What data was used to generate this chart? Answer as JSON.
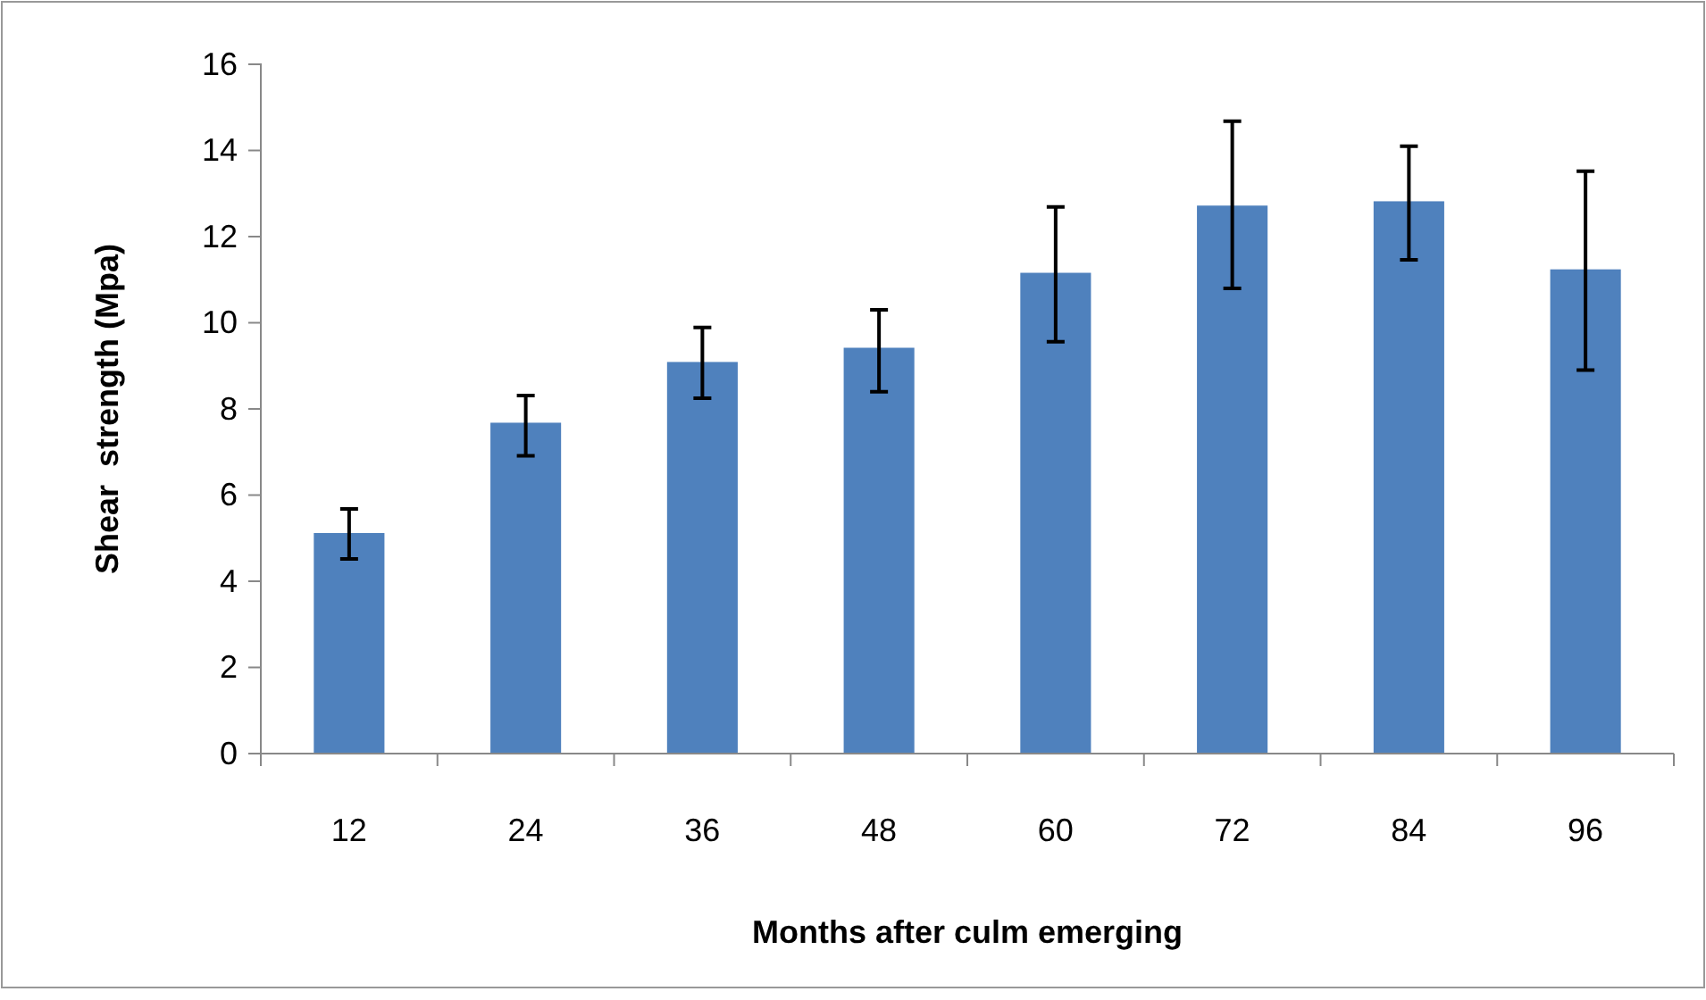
{
  "chart_data": {
    "type": "bar",
    "xlabel": "Months after culm emerging",
    "ylabel": "Shear  strength (Mpa)",
    "categories": [
      "12",
      "24",
      "36",
      "48",
      "60",
      "72",
      "84",
      "96"
    ],
    "values": [
      5.12,
      7.68,
      9.09,
      9.42,
      11.16,
      12.72,
      12.82,
      11.24
    ],
    "errors": [
      [
        4.52,
        5.68
      ],
      [
        6.91,
        8.31
      ],
      [
        8.25,
        9.89
      ],
      [
        8.4,
        10.3
      ],
      [
        9.56,
        12.69
      ],
      [
        10.8,
        14.68
      ],
      [
        11.46,
        14.1
      ],
      [
        8.9,
        13.52
      ]
    ],
    "color": "#4f81bd",
    "ylim": [
      0,
      16
    ],
    "yticks": [
      0,
      2,
      4,
      6,
      8,
      10,
      12,
      14,
      16
    ],
    "grid": false
  }
}
